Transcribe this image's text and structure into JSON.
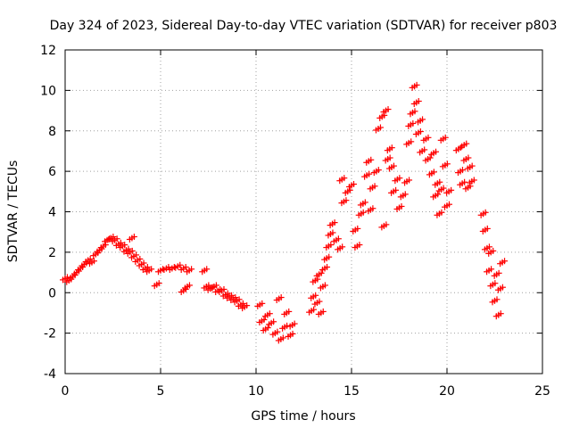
{
  "chart_data": {
    "type": "scatter",
    "title": "Day 324 of 2023, Sidereal Day-to-day VTEC variation (SDTVAR) for receiver p803",
    "xlabel": "GPS time / hours",
    "ylabel": "SDTVAR / TECUs",
    "xlim": [
      0,
      25
    ],
    "ylim": [
      -4,
      12
    ],
    "x_ticks": [
      0,
      5,
      10,
      15,
      20,
      25
    ],
    "y_ticks": [
      -4,
      -2,
      0,
      2,
      4,
      6,
      8,
      10,
      12
    ],
    "grid": true,
    "marker": "+",
    "color": "#ff0000",
    "series": [
      {
        "name": "SDTVAR",
        "points": [
          [
            0.0,
            0.7
          ],
          [
            0.2,
            0.6
          ],
          [
            0.4,
            0.8
          ],
          [
            0.6,
            1.0
          ],
          [
            0.8,
            1.2
          ],
          [
            1.0,
            1.4
          ],
          [
            1.2,
            1.6
          ],
          [
            1.4,
            1.5
          ],
          [
            1.6,
            1.9
          ],
          [
            1.8,
            2.1
          ],
          [
            2.0,
            2.3
          ],
          [
            2.2,
            2.6
          ],
          [
            2.4,
            2.7
          ],
          [
            2.6,
            2.6
          ],
          [
            2.8,
            2.4
          ],
          [
            3.0,
            2.3
          ],
          [
            3.2,
            2.1
          ],
          [
            3.4,
            2.0
          ],
          [
            3.5,
            2.7
          ],
          [
            3.6,
            1.8
          ],
          [
            3.8,
            1.6
          ],
          [
            4.0,
            1.4
          ],
          [
            4.2,
            1.2
          ],
          [
            4.4,
            1.1
          ],
          [
            4.8,
            0.4
          ],
          [
            5.0,
            1.1
          ],
          [
            5.3,
            1.2
          ],
          [
            5.6,
            1.2
          ],
          [
            5.9,
            1.3
          ],
          [
            6.2,
            1.2
          ],
          [
            6.5,
            1.1
          ],
          [
            6.4,
            0.3
          ],
          [
            6.2,
            0.1
          ],
          [
            7.3,
            1.1
          ],
          [
            7.4,
            0.3
          ],
          [
            7.6,
            0.2
          ],
          [
            7.8,
            0.3
          ],
          [
            8.0,
            0.1
          ],
          [
            8.2,
            0.1
          ],
          [
            8.4,
            -0.1
          ],
          [
            8.6,
            -0.2
          ],
          [
            8.8,
            -0.3
          ],
          [
            9.0,
            -0.4
          ],
          [
            9.2,
            -0.6
          ],
          [
            9.4,
            -0.7
          ],
          [
            10.2,
            -0.6
          ],
          [
            10.3,
            -1.4
          ],
          [
            10.5,
            -1.8
          ],
          [
            10.6,
            -1.1
          ],
          [
            10.8,
            -1.5
          ],
          [
            11.0,
            -2.0
          ],
          [
            11.2,
            -0.3
          ],
          [
            11.3,
            -2.3
          ],
          [
            11.5,
            -1.7
          ],
          [
            11.6,
            -1.0
          ],
          [
            11.8,
            -2.1
          ],
          [
            11.9,
            -1.6
          ],
          [
            12.9,
            -0.9
          ],
          [
            13.0,
            -0.2
          ],
          [
            13.1,
            0.6
          ],
          [
            13.2,
            -0.5
          ],
          [
            13.3,
            0.9
          ],
          [
            13.4,
            -1.0
          ],
          [
            13.5,
            0.3
          ],
          [
            13.6,
            1.2
          ],
          [
            13.7,
            1.7
          ],
          [
            13.8,
            2.3
          ],
          [
            13.9,
            2.9
          ],
          [
            14.0,
            3.4
          ],
          [
            14.2,
            2.6
          ],
          [
            14.4,
            2.2
          ],
          [
            14.6,
            4.5
          ],
          [
            14.8,
            5.0
          ],
          [
            14.5,
            5.6
          ],
          [
            15.0,
            5.3
          ],
          [
            15.2,
            3.1
          ],
          [
            15.3,
            2.3
          ],
          [
            15.5,
            3.9
          ],
          [
            15.6,
            4.4
          ],
          [
            15.8,
            5.8
          ],
          [
            15.9,
            6.5
          ],
          [
            16.0,
            4.1
          ],
          [
            16.1,
            5.2
          ],
          [
            16.3,
            6.0
          ],
          [
            16.4,
            8.1
          ],
          [
            16.6,
            8.7
          ],
          [
            16.8,
            9.0
          ],
          [
            16.7,
            3.3
          ],
          [
            16.9,
            6.6
          ],
          [
            17.0,
            7.1
          ],
          [
            17.1,
            6.2
          ],
          [
            17.2,
            5.0
          ],
          [
            17.4,
            5.6
          ],
          [
            17.5,
            4.2
          ],
          [
            17.7,
            4.8
          ],
          [
            17.9,
            5.5
          ],
          [
            18.0,
            7.4
          ],
          [
            18.1,
            8.3
          ],
          [
            18.2,
            8.9
          ],
          [
            18.3,
            10.2
          ],
          [
            18.4,
            9.4
          ],
          [
            18.5,
            7.9
          ],
          [
            18.6,
            8.5
          ],
          [
            18.7,
            7.0
          ],
          [
            18.9,
            7.6
          ],
          [
            19.0,
            6.6
          ],
          [
            19.2,
            5.9
          ],
          [
            19.3,
            6.9
          ],
          [
            19.4,
            4.8
          ],
          [
            19.5,
            5.4
          ],
          [
            19.6,
            3.9
          ],
          [
            19.7,
            5.1
          ],
          [
            19.8,
            7.6
          ],
          [
            19.9,
            6.3
          ],
          [
            20.0,
            4.3
          ],
          [
            20.1,
            5.0
          ],
          [
            20.6,
            7.1
          ],
          [
            20.7,
            6.0
          ],
          [
            20.8,
            5.4
          ],
          [
            20.9,
            7.3
          ],
          [
            21.0,
            6.6
          ],
          [
            21.1,
            5.2
          ],
          [
            21.2,
            6.2
          ],
          [
            21.3,
            5.5
          ],
          [
            21.9,
            3.9
          ],
          [
            22.0,
            3.1
          ],
          [
            22.1,
            2.2
          ],
          [
            22.2,
            1.1
          ],
          [
            22.3,
            2.0
          ],
          [
            22.4,
            0.4
          ],
          [
            22.5,
            -0.4
          ],
          [
            22.6,
            0.9
          ],
          [
            22.7,
            -1.1
          ],
          [
            22.8,
            0.2
          ],
          [
            22.9,
            1.5
          ]
        ]
      }
    ]
  }
}
